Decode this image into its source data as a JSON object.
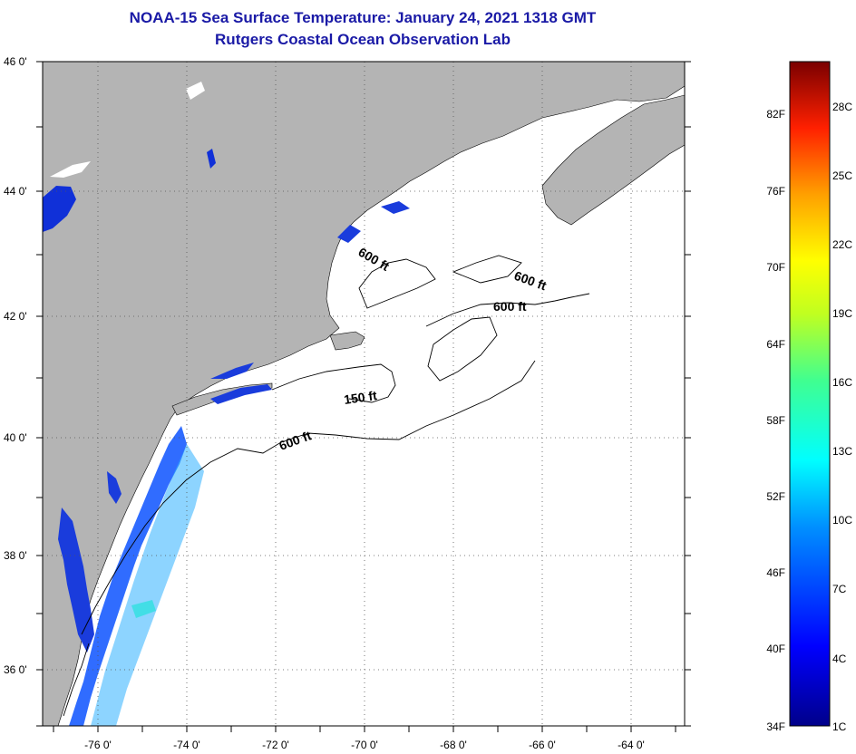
{
  "header": {
    "title": "NOAA-15 Sea Surface Temperature:  January 24, 2021 1318 GMT",
    "subtitle": "Rutgers Coastal Ocean Observation Lab"
  },
  "map": {
    "lat_labels": [
      "46 0'",
      "44 0'",
      "42 0'",
      "40 0'",
      "38 0'",
      "36 0'"
    ],
    "lon_labels": [
      "-76 0'",
      "-74 0'",
      "-72 0'",
      "-70 0'",
      "-68 0'",
      "-66 0'",
      "-64 0'"
    ],
    "contours": [
      {
        "label": "600 ft",
        "rotate": 30
      },
      {
        "label": "600 ft",
        "rotate": 20
      },
      {
        "label": "600 ft",
        "rotate": 0
      },
      {
        "label": "150 ft",
        "rotate": -8
      },
      {
        "label": "600 ft",
        "rotate": -20
      }
    ],
    "land_color": "#b4b4b4",
    "ocean_color": "#ffffff"
  },
  "colorbar": {
    "fahrenheit": [
      "82F",
      "76F",
      "70F",
      "64F",
      "58F",
      "52F",
      "46F",
      "40F",
      "34F"
    ],
    "celsius": [
      "28C",
      "25C",
      "22C",
      "19C",
      "16C",
      "13C",
      "10C",
      "7C",
      "4C",
      "1C"
    ]
  }
}
